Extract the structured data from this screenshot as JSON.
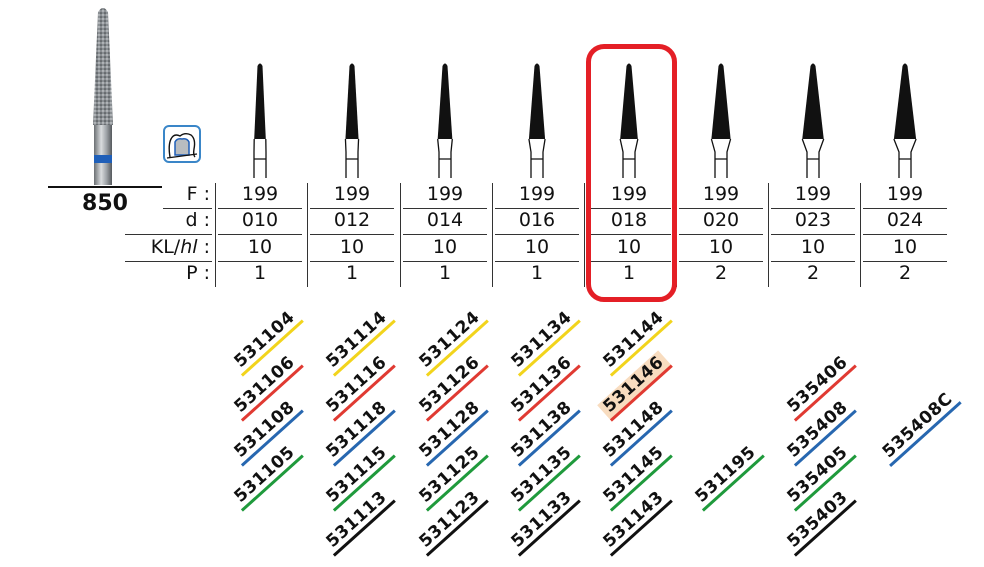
{
  "product": {
    "model_number": "850",
    "icon": "crown-preparation-icon",
    "shank_band_color": "#1f5fb8"
  },
  "table": {
    "row_labels": [
      {
        "key": "F",
        "text": "F :"
      },
      {
        "key": "d",
        "text": "d :"
      },
      {
        "key": "KL",
        "text_main": "KL/",
        "text_italic": "hl",
        "text_tail": " :"
      },
      {
        "key": "P",
        "text": "P :"
      }
    ],
    "columns": [
      {
        "F": "199",
        "d": "010",
        "KL": "10",
        "P": "1",
        "codes": [
          {
            "code": "531104",
            "color": "yellow"
          },
          {
            "code": "531106",
            "color": "red"
          },
          {
            "code": "531108",
            "color": "blue"
          },
          {
            "code": "531105",
            "color": "green"
          }
        ]
      },
      {
        "F": "199",
        "d": "012",
        "KL": "10",
        "P": "1",
        "codes": [
          {
            "code": "531114",
            "color": "yellow"
          },
          {
            "code": "531116",
            "color": "red"
          },
          {
            "code": "531118",
            "color": "blue"
          },
          {
            "code": "531115",
            "color": "green"
          },
          {
            "code": "531113",
            "color": "black"
          }
        ]
      },
      {
        "F": "199",
        "d": "014",
        "KL": "10",
        "P": "1",
        "codes": [
          {
            "code": "531124",
            "color": "yellow"
          },
          {
            "code": "531126",
            "color": "red"
          },
          {
            "code": "531128",
            "color": "blue"
          },
          {
            "code": "531125",
            "color": "green"
          },
          {
            "code": "531123",
            "color": "black"
          }
        ]
      },
      {
        "F": "199",
        "d": "016",
        "KL": "10",
        "P": "1",
        "codes": [
          {
            "code": "531134",
            "color": "yellow"
          },
          {
            "code": "531136",
            "color": "red"
          },
          {
            "code": "531138",
            "color": "blue"
          },
          {
            "code": "531135",
            "color": "green"
          },
          {
            "code": "531133",
            "color": "black"
          }
        ]
      },
      {
        "F": "199",
        "d": "018",
        "KL": "10",
        "P": "1",
        "highlighted": true,
        "codes": [
          {
            "code": "531144",
            "color": "yellow"
          },
          {
            "code": "531146",
            "color": "red",
            "highlighted": true
          },
          {
            "code": "531148",
            "color": "blue"
          },
          {
            "code": "531145",
            "color": "green"
          },
          {
            "code": "531143",
            "color": "black"
          }
        ]
      },
      {
        "F": "199",
        "d": "020",
        "KL": "10",
        "P": "2",
        "codes": [
          {
            "code": "531195",
            "color": "green"
          }
        ]
      },
      {
        "F": "199",
        "d": "023",
        "KL": "10",
        "P": "2",
        "codes": [
          {
            "code": "535406",
            "color": "red"
          },
          {
            "code": "535408",
            "color": "blue"
          },
          {
            "code": "535405",
            "color": "green"
          },
          {
            "code": "535403",
            "color": "black"
          }
        ]
      },
      {
        "F": "199",
        "d": "024",
        "KL": "10",
        "P": "2",
        "codes": [
          {
            "code": "535408C",
            "color": "blue"
          }
        ]
      }
    ]
  },
  "colors": {
    "yellow": "#f2d41c",
    "red": "#e03a32",
    "blue": "#2767b0",
    "green": "#1f9a3c",
    "black": "#111111",
    "highlight_box": "#e41f26",
    "highlight_code_bg": "#f8dcbf"
  }
}
